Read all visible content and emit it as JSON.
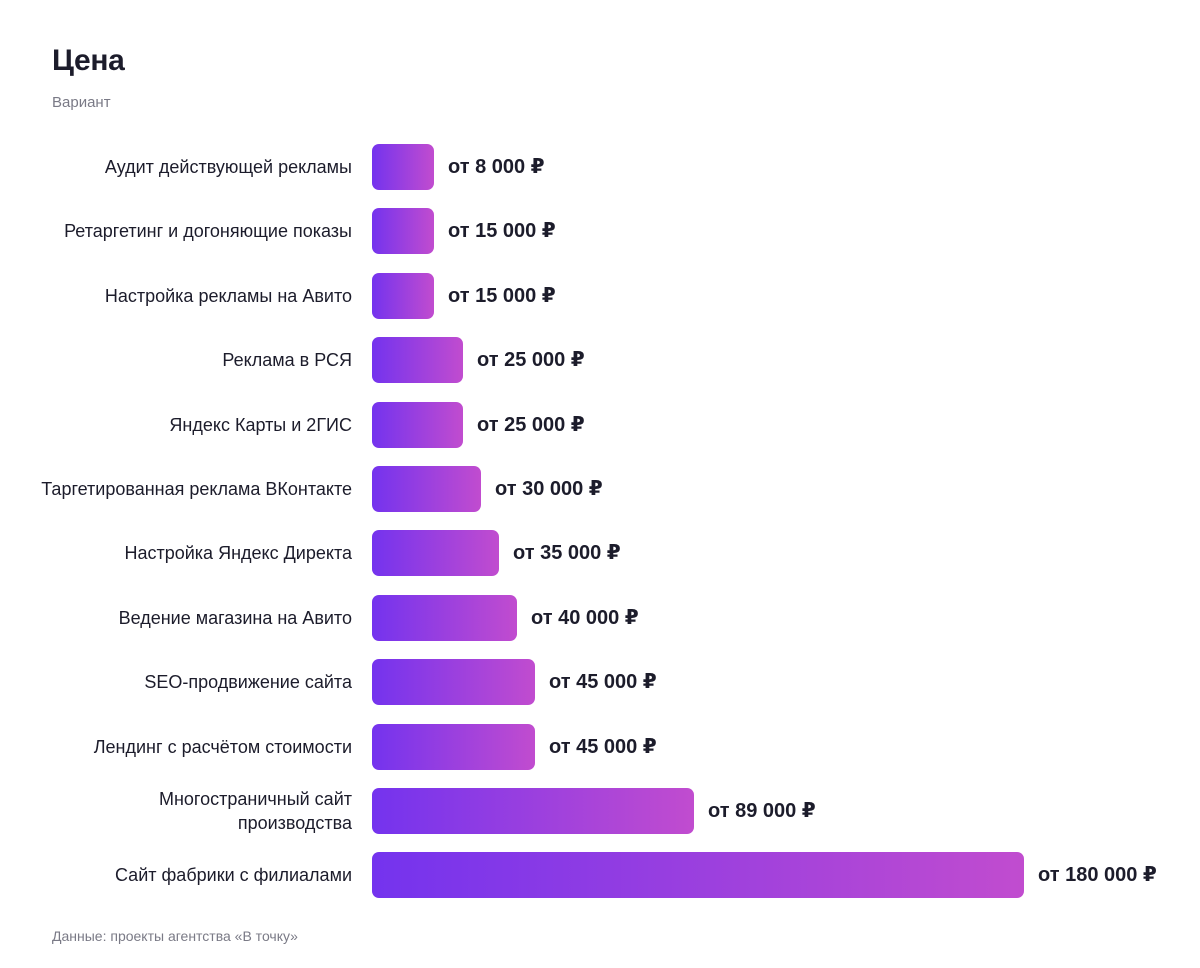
{
  "chart_data": {
    "type": "bar",
    "orientation": "horizontal",
    "title": "Цена",
    "subtitle": "Вариант",
    "footer": "Данные: проекты агентства «В точку»",
    "value_prefix": "от ",
    "value_suffix": " ₽",
    "categories": [
      "Аудит действующей рекламы",
      "Ретаргетинг и догоняющие показы",
      "Настройка рекламы на Авито",
      "Реклама в РСЯ",
      "Яндекс Карты и 2ГИС",
      "Таргетированная реклама ВКонтакте",
      "Настройка Яндекс Директа",
      "Ведение магазина на Авито",
      "SEO-продвижение сайта",
      "Лендинг с расчётом стоимости",
      "Многостраничный сайт производства",
      "Сайт фабрики с филиалами"
    ],
    "values": [
      8000,
      15000,
      15000,
      25000,
      25000,
      30000,
      35000,
      40000,
      45000,
      45000,
      89000,
      180000
    ],
    "value_labels": [
      "от 8 000 ₽",
      "от 15 000 ₽",
      "от 15 000 ₽",
      "от 25 000 ₽",
      "от 25 000 ₽",
      "от 30 000 ₽",
      "от 35 000 ₽",
      "от 40 000 ₽",
      "от 45 000 ₽",
      "от 45 000 ₽",
      "от 89 000 ₽",
      "от 180 000 ₽"
    ],
    "grid": false,
    "legend": "none",
    "colors": {
      "bar_start": "#7433ee",
      "bar_end": "#c14ccf",
      "text": "#1c1c2b",
      "muted": "#7a7a86"
    }
  }
}
